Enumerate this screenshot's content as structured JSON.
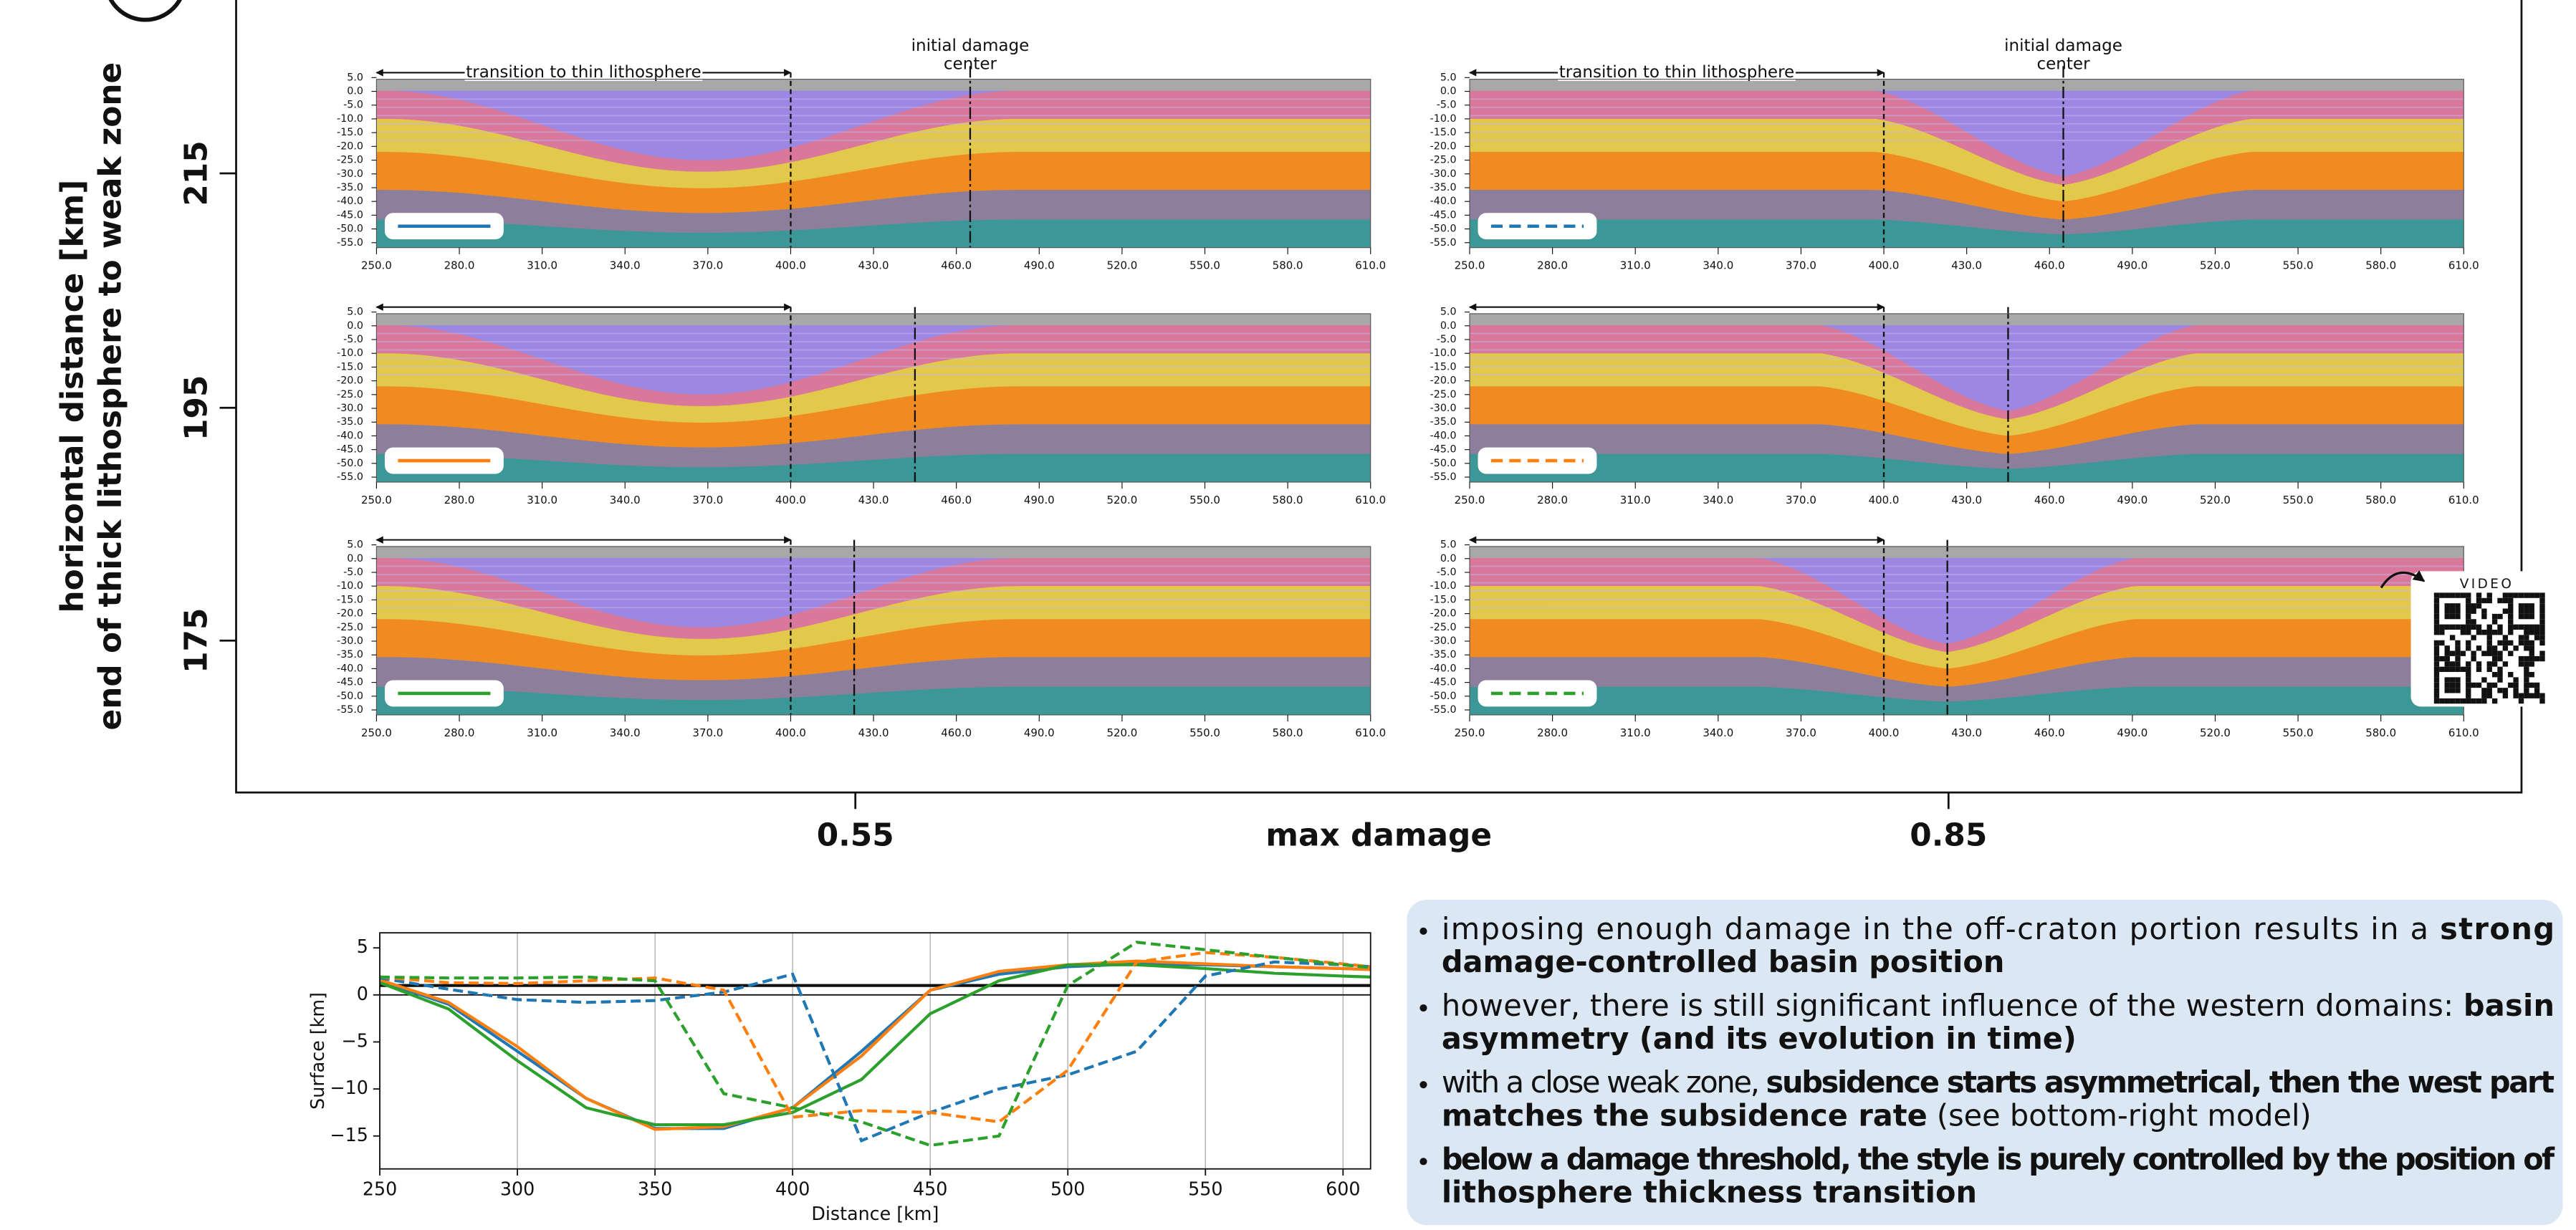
{
  "figure": {
    "ylabel": [
      "horizontal distance [km]",
      "end of thick lithosphere to weak zone"
    ],
    "yticks": [
      "215",
      "195",
      "175"
    ],
    "xlabel": "max damage",
    "xticks": [
      "0.55",
      "0.85"
    ]
  },
  "model_panels": {
    "depth_ticks": [
      "5.0",
      "0.0",
      "-5.0",
      "-10.0",
      "-15.0",
      "-20.0",
      "-25.0",
      "-30.0",
      "-35.0",
      "-40.0",
      "-45.0",
      "-50.0",
      "-55.0"
    ],
    "distance_ticks": [
      "250.0",
      "280.0",
      "310.0",
      "340.0",
      "370.0",
      "400.0",
      "430.0",
      "460.0",
      "490.0",
      "520.0",
      "550.0",
      "580.0",
      "610.0"
    ],
    "transition_label": "transition to thin lithosphere",
    "damage_center_label": [
      "initial damage",
      "center"
    ]
  },
  "video_label": "VIDEO",
  "chart_data": {
    "type": "line",
    "xlabel": "Distance [km]",
    "ylabel": "Surface [km]",
    "x": [
      250,
      275,
      300,
      325,
      350,
      375,
      400,
      425,
      450,
      475,
      500,
      525,
      550,
      575,
      600,
      610
    ],
    "series": [
      {
        "color": "#1f77b4",
        "dashed": false,
        "values": [
          1.5,
          -1,
          -6,
          -11,
          -14.2,
          -14.2,
          -12,
          -6,
          0.5,
          2.2,
          3,
          3.3,
          3.2,
          3,
          2.8,
          2.7
        ]
      },
      {
        "color": "#ff7f0e",
        "dashed": false,
        "values": [
          1.6,
          -0.8,
          -5.5,
          -11,
          -14.3,
          -14,
          -12,
          -6.5,
          0.5,
          2.5,
          3.2,
          3.6,
          3.3,
          3,
          2.8,
          2.7
        ]
      },
      {
        "color": "#2ca02c",
        "dashed": false,
        "values": [
          1.3,
          -1.5,
          -7,
          -12,
          -13.8,
          -13.8,
          -12.5,
          -9,
          -2,
          1.5,
          3.2,
          3.2,
          2.8,
          2.3,
          2,
          1.9
        ]
      },
      {
        "color": "#1f77b4",
        "dashed": true,
        "values": [
          1.8,
          0.6,
          -0.5,
          -0.8,
          -0.6,
          0.3,
          2.2,
          -15.5,
          -12.5,
          -10,
          -8.5,
          -6,
          2,
          3.5,
          3.2,
          3
        ]
      },
      {
        "color": "#ff7f0e",
        "dashed": true,
        "values": [
          1.9,
          1.3,
          1.2,
          1.5,
          1.8,
          0.5,
          -13,
          -12.3,
          -12.5,
          -13.5,
          -8,
          3.5,
          4.5,
          4,
          3.3,
          3
        ]
      },
      {
        "color": "#2ca02c",
        "dashed": true,
        "values": [
          1.9,
          1.8,
          1.8,
          1.9,
          1.5,
          -10.5,
          -12,
          -13.5,
          -16,
          -15,
          1,
          5.6,
          4.8,
          4,
          3.2,
          2.9
        ]
      }
    ],
    "xlim": [
      250,
      610
    ],
    "ylim": [
      -18.5,
      6.6
    ],
    "xticks": [
      250,
      300,
      350,
      400,
      450,
      500,
      550,
      600
    ],
    "yticks": [
      5,
      0,
      {
        "value": -5,
        "label": "−5"
      },
      {
        "value": -10,
        "label": "−10"
      },
      {
        "value": -15,
        "label": "−15"
      }
    ],
    "hlines": [
      1,
      0
    ],
    "grid": "x"
  },
  "bullets": [
    {
      "lines": [
        [
          {
            "text": "imposing enough damage in the off-craton portion results in a ",
            "bold": false
          },
          {
            "text": "strong",
            "bold": true
          }
        ],
        [
          {
            "text": "damage-controlled basin position",
            "bold": true
          }
        ]
      ]
    },
    {
      "lines": [
        [
          {
            "text": "however, there is still significant influence of the western domains: ",
            "bold": false
          },
          {
            "text": "basin",
            "bold": true
          }
        ],
        [
          {
            "text": "asymmetry (and its evolution in time)",
            "bold": true
          }
        ]
      ]
    },
    {
      "lines": [
        [
          {
            "text": "with a close weak zone, ",
            "bold": false
          },
          {
            "text": "subsidence starts asymmetrical, then the west part",
            "bold": true
          }
        ],
        [
          {
            "text": "matches the subsidence rate",
            "bold": true
          },
          {
            "text": " (see bottom-right model)",
            "bold": false
          }
        ]
      ]
    },
    {
      "lines": [
        [
          {
            "text": "below a damage threshold, the style is purely controlled by the position of",
            "bold": true
          }
        ],
        [
          {
            "text": "lithosphere thickness transition",
            "bold": true
          }
        ]
      ]
    }
  ]
}
